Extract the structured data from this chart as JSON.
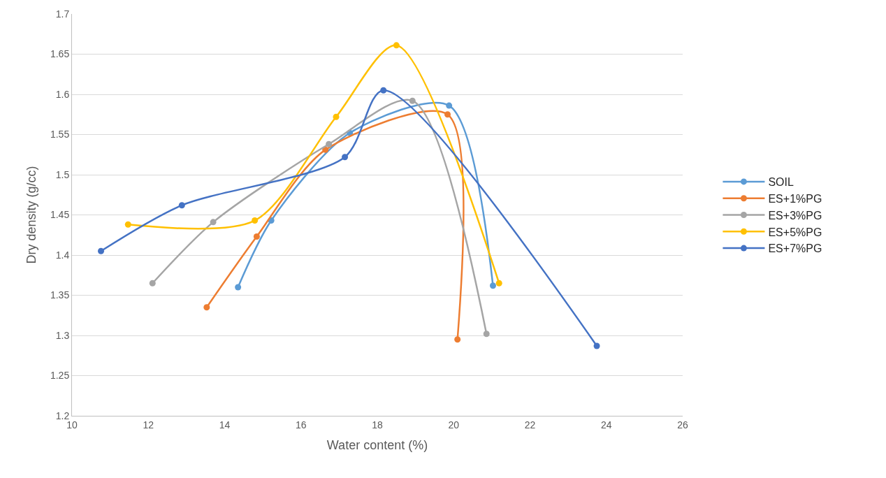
{
  "chart_data": {
    "type": "line",
    "xlabel": "Water content (%)",
    "ylabel": "Dry density (g/cc)",
    "xlim": [
      10,
      26
    ],
    "xticks": [
      10,
      12,
      14,
      16,
      18,
      20,
      22,
      24,
      26
    ],
    "ylim": [
      1.2,
      1.7
    ],
    "yticks": [
      1.2,
      1.25,
      1.3,
      1.35,
      1.4,
      1.45,
      1.5,
      1.55,
      1.6,
      1.65,
      1.7
    ],
    "grid": "y",
    "legend": "right",
    "marker": "circle",
    "line_style": "solid",
    "series": [
      {
        "name": "SOIL",
        "color": "#5b9bd5",
        "x": [
          14.35,
          15.22,
          17.28,
          19.88,
          21.03
        ],
        "values": [
          1.36,
          1.443,
          1.552,
          1.586,
          1.362
        ]
      },
      {
        "name": "ES+1%PG",
        "color": "#ed7d31",
        "x": [
          13.53,
          14.84,
          16.64,
          19.84,
          20.1
        ],
        "values": [
          1.335,
          1.423,
          1.531,
          1.575,
          1.295
        ]
      },
      {
        "name": "ES+3%PG",
        "color": "#a5a5a5",
        "x": [
          12.11,
          13.7,
          16.73,
          18.92,
          20.86
        ],
        "values": [
          1.365,
          1.441,
          1.538,
          1.592,
          1.302
        ]
      },
      {
        "name": "ES+5%PG",
        "color": "#ffc000",
        "x": [
          11.47,
          14.79,
          16.92,
          18.5,
          21.19
        ],
        "values": [
          1.438,
          1.443,
          1.572,
          1.661,
          1.365
        ]
      },
      {
        "name": "ES+7%PG",
        "color": "#4472c4",
        "x": [
          10.76,
          12.88,
          17.15,
          18.16,
          23.75
        ],
        "values": [
          1.405,
          1.462,
          1.522,
          1.605,
          1.287
        ]
      }
    ]
  }
}
